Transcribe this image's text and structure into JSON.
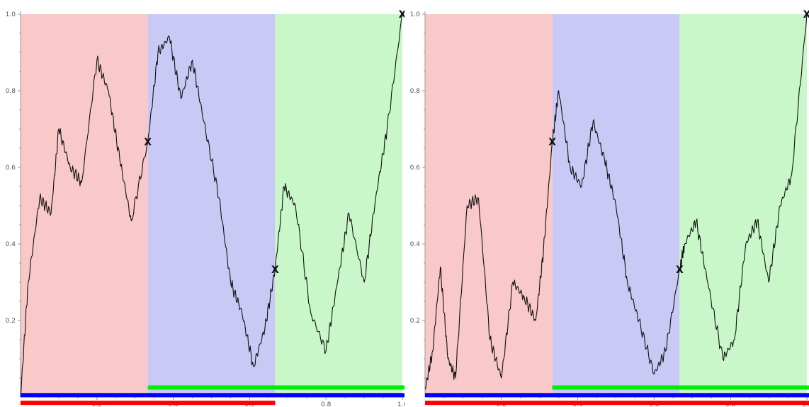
{
  "colors": {
    "band_red": "#f9c8c8",
    "band_blue": "#c9c9f6",
    "band_green": "#c9f7c9",
    "line_red": "#ff0000",
    "line_blue": "#0000ff",
    "line_green": "#00ee00",
    "curve": "#111111"
  },
  "chart_data": [
    {
      "type": "line",
      "title": "",
      "xlabel": "",
      "ylabel": "",
      "xlim": [
        0,
        1
      ],
      "ylim": [
        0,
        1
      ],
      "x_ticks": [
        0.2,
        0.4,
        0.6,
        0.8,
        1.0
      ],
      "x_tick_labels": [
        "0.2",
        "0.4",
        "0.6",
        "0.8",
        "1.0"
      ],
      "y_ticks": [
        0.2,
        0.4,
        0.6,
        0.8,
        1.0
      ],
      "y_tick_labels": [
        "0.2",
        "0.4",
        "0.6",
        "0.8",
        "1.0"
      ],
      "grid": false,
      "bands": [
        {
          "x0": 0,
          "x1": 0.3333,
          "color": "red"
        },
        {
          "x0": 0.3333,
          "x1": 0.6667,
          "color": "blue"
        },
        {
          "x0": 0.6667,
          "x1": 1,
          "color": "green"
        }
      ],
      "bars": [
        {
          "x0": 0.3333,
          "x1": 1,
          "y": 0.025,
          "color": "green"
        },
        {
          "x0": 0,
          "x1": 1,
          "y": 0.005,
          "color": "blue"
        },
        {
          "x0": 0,
          "x1": 0.6667,
          "y": -0.015,
          "color": "red"
        }
      ],
      "markers": [
        {
          "x": 0,
          "y": -0.04,
          "label": "X"
        },
        {
          "x": 0.3333,
          "y": 0.6667,
          "label": "X"
        },
        {
          "x": 0.6667,
          "y": 0.3333,
          "label": "X"
        },
        {
          "x": 1,
          "y": 1,
          "label": "X"
        }
      ],
      "curve": {
        "x": [
          0,
          0.02,
          0.05,
          0.08,
          0.1,
          0.13,
          0.16,
          0.2,
          0.23,
          0.26,
          0.29,
          0.3333,
          0.36,
          0.39,
          0.42,
          0.45,
          0.48,
          0.52,
          0.55,
          0.58,
          0.61,
          0.64,
          0.6667,
          0.69,
          0.72,
          0.76,
          0.8,
          0.83,
          0.86,
          0.9,
          0.93,
          0.96,
          1.0
        ],
        "y": [
          0,
          0.3,
          0.52,
          0.48,
          0.7,
          0.6,
          0.56,
          0.88,
          0.8,
          0.62,
          0.46,
          0.6667,
          0.9,
          0.94,
          0.78,
          0.88,
          0.72,
          0.52,
          0.3,
          0.22,
          0.08,
          0.18,
          0.3333,
          0.55,
          0.5,
          0.22,
          0.12,
          0.3,
          0.48,
          0.3,
          0.52,
          0.7,
          1.0
        ]
      }
    },
    {
      "type": "line",
      "title": "",
      "xlabel": "",
      "ylabel": "",
      "xlim": [
        0,
        1
      ],
      "ylim": [
        0,
        1
      ],
      "x_ticks": [
        0.2,
        0.4,
        0.6,
        0.8,
        1.0
      ],
      "x_tick_labels": [
        "0.2",
        "0.4",
        "0.6",
        "0.8",
        "1.0"
      ],
      "y_ticks": [
        0.2,
        0.4,
        0.6,
        0.8,
        1.0
      ],
      "y_tick_labels": [
        "0.2",
        "0.4",
        "0.6",
        "0.8",
        "1.0"
      ],
      "grid": false,
      "bands": [
        {
          "x0": 0,
          "x1": 0.3333,
          "color": "red"
        },
        {
          "x0": 0.3333,
          "x1": 0.6667,
          "color": "blue"
        },
        {
          "x0": 0.6667,
          "x1": 1,
          "color": "green"
        }
      ],
      "bars": [
        {
          "x0": 0.3333,
          "x1": 1,
          "y": 0.025,
          "color": "green"
        },
        {
          "x0": 0,
          "x1": 1,
          "y": 0.005,
          "color": "blue"
        },
        {
          "x0": 0,
          "x1": 1,
          "y": -0.015,
          "color": "red"
        }
      ],
      "markers": [
        {
          "x": 0,
          "y": -0.04,
          "label": "X"
        },
        {
          "x": 0.3333,
          "y": 0.6667,
          "label": "X"
        },
        {
          "x": 0.6667,
          "y": 0.3333,
          "label": "X"
        },
        {
          "x": 1,
          "y": 1,
          "label": "X"
        }
      ],
      "curve": {
        "x": [
          0,
          0.02,
          0.04,
          0.06,
          0.08,
          0.11,
          0.14,
          0.17,
          0.2,
          0.23,
          0.26,
          0.29,
          0.31,
          0.3333,
          0.35,
          0.38,
          0.41,
          0.44,
          0.47,
          0.5,
          0.53,
          0.56,
          0.6,
          0.63,
          0.6667,
          0.68,
          0.71,
          0.74,
          0.78,
          0.81,
          0.84,
          0.87,
          0.9,
          0.93,
          0.96,
          1.0
        ],
        "y": [
          0.02,
          0.12,
          0.34,
          0.1,
          0.05,
          0.5,
          0.52,
          0.15,
          0.05,
          0.3,
          0.26,
          0.2,
          0.38,
          0.6667,
          0.8,
          0.6,
          0.55,
          0.72,
          0.62,
          0.5,
          0.3,
          0.2,
          0.06,
          0.12,
          0.3333,
          0.4,
          0.46,
          0.3,
          0.1,
          0.15,
          0.4,
          0.46,
          0.3,
          0.5,
          0.58,
          1.0
        ]
      }
    }
  ]
}
